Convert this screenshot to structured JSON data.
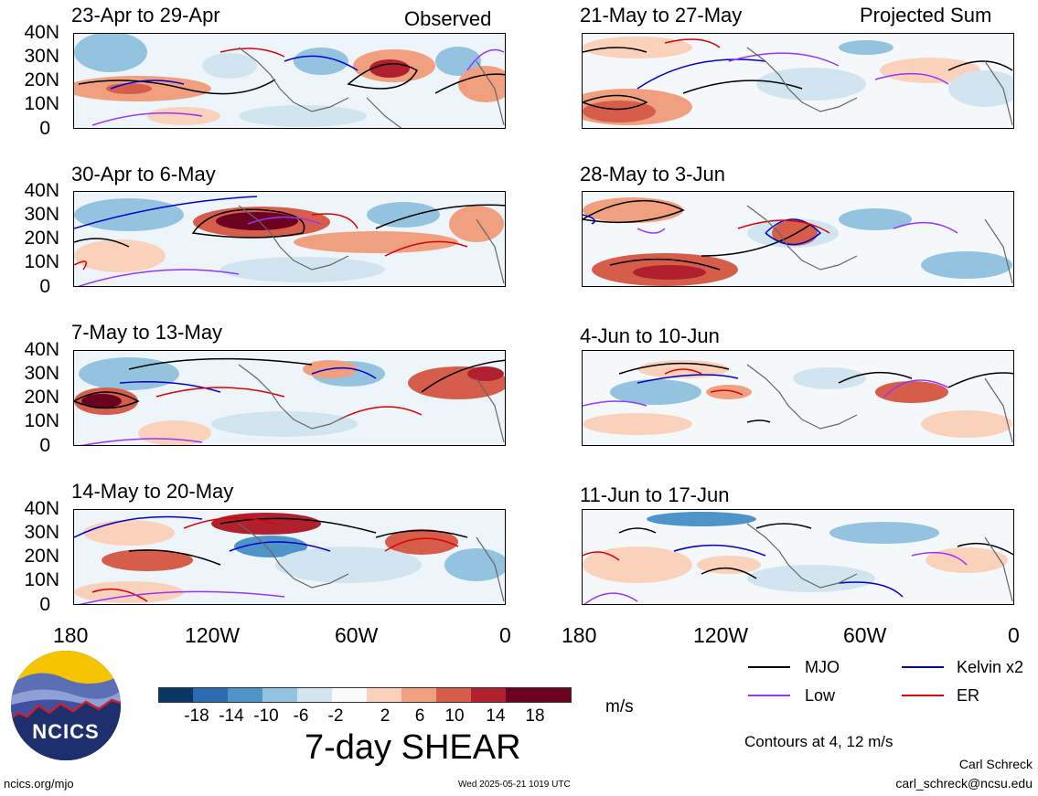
{
  "header": {
    "observed_label": "Observed",
    "projected_label": "Projected Sum"
  },
  "panels_left": [
    {
      "title": "23-Apr to 29-Apr"
    },
    {
      "title": "30-Apr to 6-May"
    },
    {
      "title": "7-May to 13-May"
    },
    {
      "title": "14-May to 20-May"
    }
  ],
  "panels_right": [
    {
      "title": "21-May to 27-May"
    },
    {
      "title": "28-May to 3-Jun"
    },
    {
      "title": "4-Jun to 10-Jun"
    },
    {
      "title": "11-Jun to 17-Jun"
    }
  ],
  "lat_labels": [
    "40N",
    "30N",
    "20N",
    "10N",
    "0"
  ],
  "lon_labels": [
    "180",
    "120W",
    "60W",
    "0"
  ],
  "legend": {
    "items": [
      {
        "label": "MJO",
        "color": "#000000"
      },
      {
        "label": "Kelvin x2",
        "color": "#0000cc"
      },
      {
        "label": "Low",
        "color": "#9933ff"
      },
      {
        "label": "ER",
        "color": "#dd0000"
      }
    ],
    "contour_note": "Contours at 4, 12 m/s"
  },
  "colorbar": {
    "ticks": [
      "-18",
      "-14",
      "-10",
      "-6",
      "-2",
      "2",
      "6",
      "10",
      "14",
      "18"
    ],
    "colors": [
      "#0b3768",
      "#2b6cb0",
      "#4d95c9",
      "#93c3df",
      "#d1e5f1",
      "#fbfbfb",
      "#fad2bc",
      "#f0a07f",
      "#d55d4a",
      "#b0202e",
      "#6a0220"
    ],
    "units": "m/s"
  },
  "main_title": "7-day SHEAR",
  "logo_text": "NCICS",
  "footer": {
    "left": "ncics.org/mjo",
    "center": "Wed 2025-05-21 1019 UTC",
    "author": "Carl Schreck",
    "email": "carl_schreck@ncsu.edu"
  }
}
